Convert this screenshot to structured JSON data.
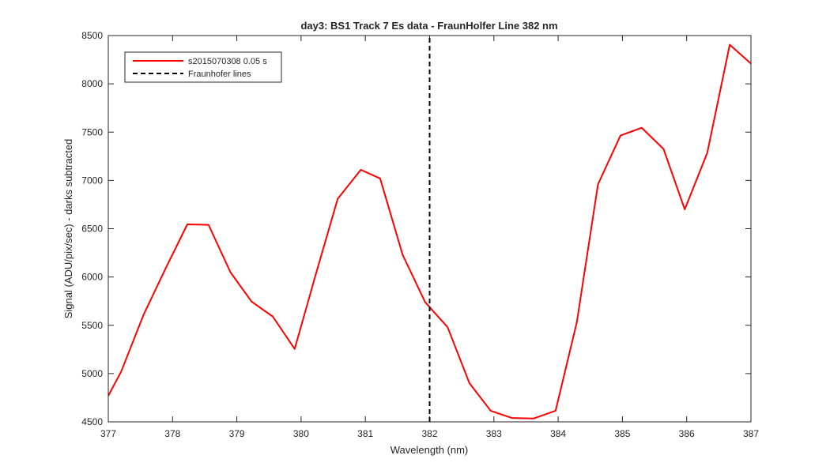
{
  "chart_data": {
    "type": "line",
    "title": "day3: BS1  Track 7 Es data - FraunHolfer Line 382 nm",
    "xlabel": "Wavelength (nm)",
    "ylabel": "Signal (ADU/pix/sec) - darks subtracted",
    "xlim": [
      377,
      387
    ],
    "ylim": [
      4500,
      8500
    ],
    "xticks": [
      377,
      378,
      379,
      380,
      381,
      382,
      383,
      384,
      385,
      386,
      387
    ],
    "yticks": [
      4500,
      5000,
      5500,
      6000,
      6500,
      7000,
      7500,
      8000,
      8500
    ],
    "grid": false,
    "legend_position": "top-left",
    "series": [
      {
        "name": "s2015070308 0.05 s",
        "color": "#ff0000",
        "style": "solid",
        "x": [
          377.0,
          377.2,
          377.55,
          377.9,
          378.23,
          378.56,
          378.9,
          379.23,
          379.56,
          379.9,
          380.23,
          380.57,
          380.93,
          381.23,
          381.58,
          381.93,
          382.28,
          382.62,
          382.95,
          383.28,
          383.62,
          383.96,
          384.29,
          384.62,
          384.97,
          385.3,
          385.64,
          385.97,
          386.32,
          386.67,
          387.0
        ],
        "y": [
          4770,
          5020,
          5610,
          6100,
          6545,
          6540,
          6050,
          5745,
          5590,
          5255,
          6030,
          6810,
          7110,
          7020,
          6230,
          5740,
          5480,
          4900,
          4615,
          4540,
          4535,
          4615,
          5530,
          6960,
          7465,
          7545,
          7325,
          6700,
          7285,
          8405,
          8210
        ]
      },
      {
        "name": "Fraunhofer lines",
        "color": "#000000",
        "style": "dashed",
        "x": [
          382,
          382
        ],
        "y": [
          4500,
          8500
        ]
      }
    ]
  }
}
